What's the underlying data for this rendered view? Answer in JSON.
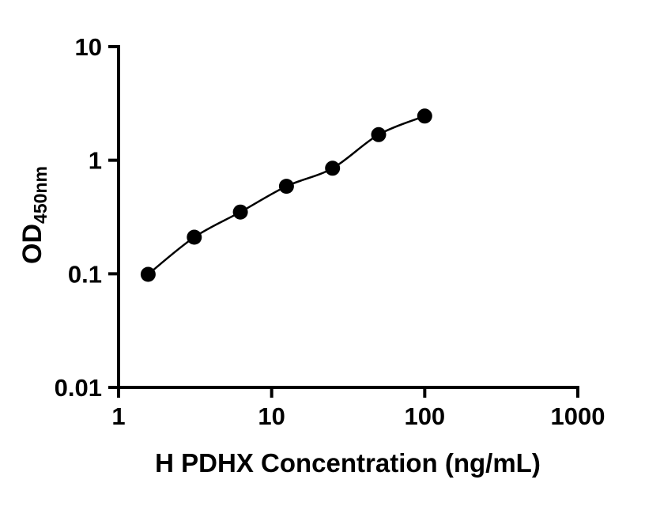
{
  "figure": {
    "background": "#ffffff",
    "axis_color": "#000000"
  },
  "chart_data": {
    "type": "scatter",
    "title": "",
    "xlabel": "H PDHX Concentration (ng/mL)",
    "ylabel": "OD450nm",
    "ylabel_main": "OD",
    "ylabel_subscript": "450nm",
    "x_scale": "log",
    "y_scale": "log",
    "xlim": [
      1,
      1000
    ],
    "ylim": [
      0.01,
      10
    ],
    "x_ticks": [
      1,
      10,
      100,
      1000
    ],
    "x_tick_labels": [
      "1",
      "10",
      "100",
      "1000"
    ],
    "y_ticks": [
      10,
      1,
      0.1,
      0.01
    ],
    "y_tick_labels": [
      "10",
      "1",
      "0.1",
      "0.01"
    ],
    "x": [
      1.56,
      3.125,
      6.25,
      12.5,
      25,
      50,
      100
    ],
    "y": [
      0.099,
      0.21,
      0.35,
      0.59,
      0.85,
      1.68,
      2.45
    ],
    "fit_line": true,
    "marker": "circle",
    "marker_color": "#000000",
    "line_color": "#000000",
    "grid": false,
    "legend": "none"
  }
}
